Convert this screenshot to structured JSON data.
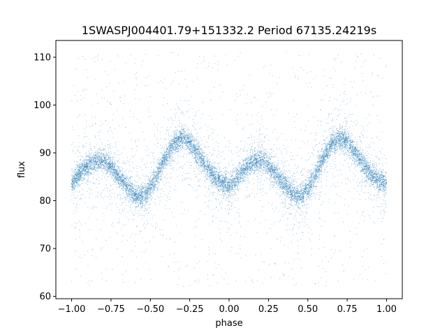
{
  "chart_data": {
    "type": "scatter",
    "title": "1SWASPJ004401.79+151332.2 Period 67135.24219s",
    "xlabel": "phase",
    "ylabel": "flux",
    "xlim": [
      -1.1,
      1.1
    ],
    "ylim": [
      59.5,
      113.5
    ],
    "xticks": [
      -1.0,
      -0.75,
      -0.5,
      -0.25,
      0.0,
      0.25,
      0.5,
      0.75,
      1.0
    ],
    "xtick_labels": [
      "−1.00",
      "−0.75",
      "−0.50",
      "−0.25",
      "0.00",
      "0.25",
      "0.50",
      "0.75",
      "1.00"
    ],
    "yticks": [
      60,
      70,
      80,
      90,
      100,
      110
    ],
    "ytick_labels": [
      "60",
      "70",
      "80",
      "90",
      "100",
      "110"
    ],
    "grid": false,
    "series": [
      {
        "color": "#1f77b4",
        "x": [
          -1.0,
          -0.95,
          -0.9,
          -0.85,
          -0.8,
          -0.75,
          -0.7,
          -0.65,
          -0.6,
          -0.55,
          -0.5,
          -0.45,
          -0.4,
          -0.35,
          -0.3,
          -0.25,
          -0.2,
          -0.15,
          -0.1,
          -0.05,
          0.0,
          0.05,
          0.1,
          0.15,
          0.2,
          0.25,
          0.3,
          0.35,
          0.4,
          0.45,
          0.5,
          0.55,
          0.6,
          0.65,
          0.7,
          0.75,
          0.8,
          0.85,
          0.9,
          0.95,
          1.0
        ],
        "y": [
          83.5,
          85.6,
          87.2,
          88.2,
          88.4,
          87.2,
          85.0,
          83.0,
          81.2,
          80.8,
          82.5,
          85.8,
          89.2,
          92.0,
          93.0,
          92.2,
          89.8,
          87.2,
          85.2,
          83.8,
          83.0,
          84.6,
          86.6,
          88.0,
          88.5,
          87.5,
          85.5,
          83.5,
          81.5,
          80.8,
          82.3,
          85.5,
          89.0,
          91.8,
          93.0,
          92.5,
          90.2,
          87.5,
          85.5,
          84.2,
          83.6
        ]
      }
    ]
  }
}
